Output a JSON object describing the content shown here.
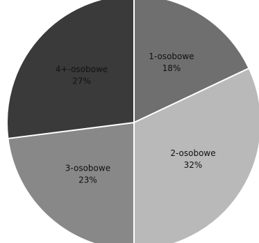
{
  "chart_data": {
    "type": "pie",
    "categories": [
      "1-osobowe",
      "2-osobowe",
      "3-osobowe",
      "4+-osobowe"
    ],
    "values": [
      18,
      32,
      23,
      27
    ],
    "labels": [
      "18%",
      "32%",
      "23%",
      "27%"
    ],
    "colors": [
      "#6f6f6f",
      "#b9b9b9",
      "#888888",
      "#3a3a3a"
    ],
    "title": "",
    "legend": "none"
  }
}
